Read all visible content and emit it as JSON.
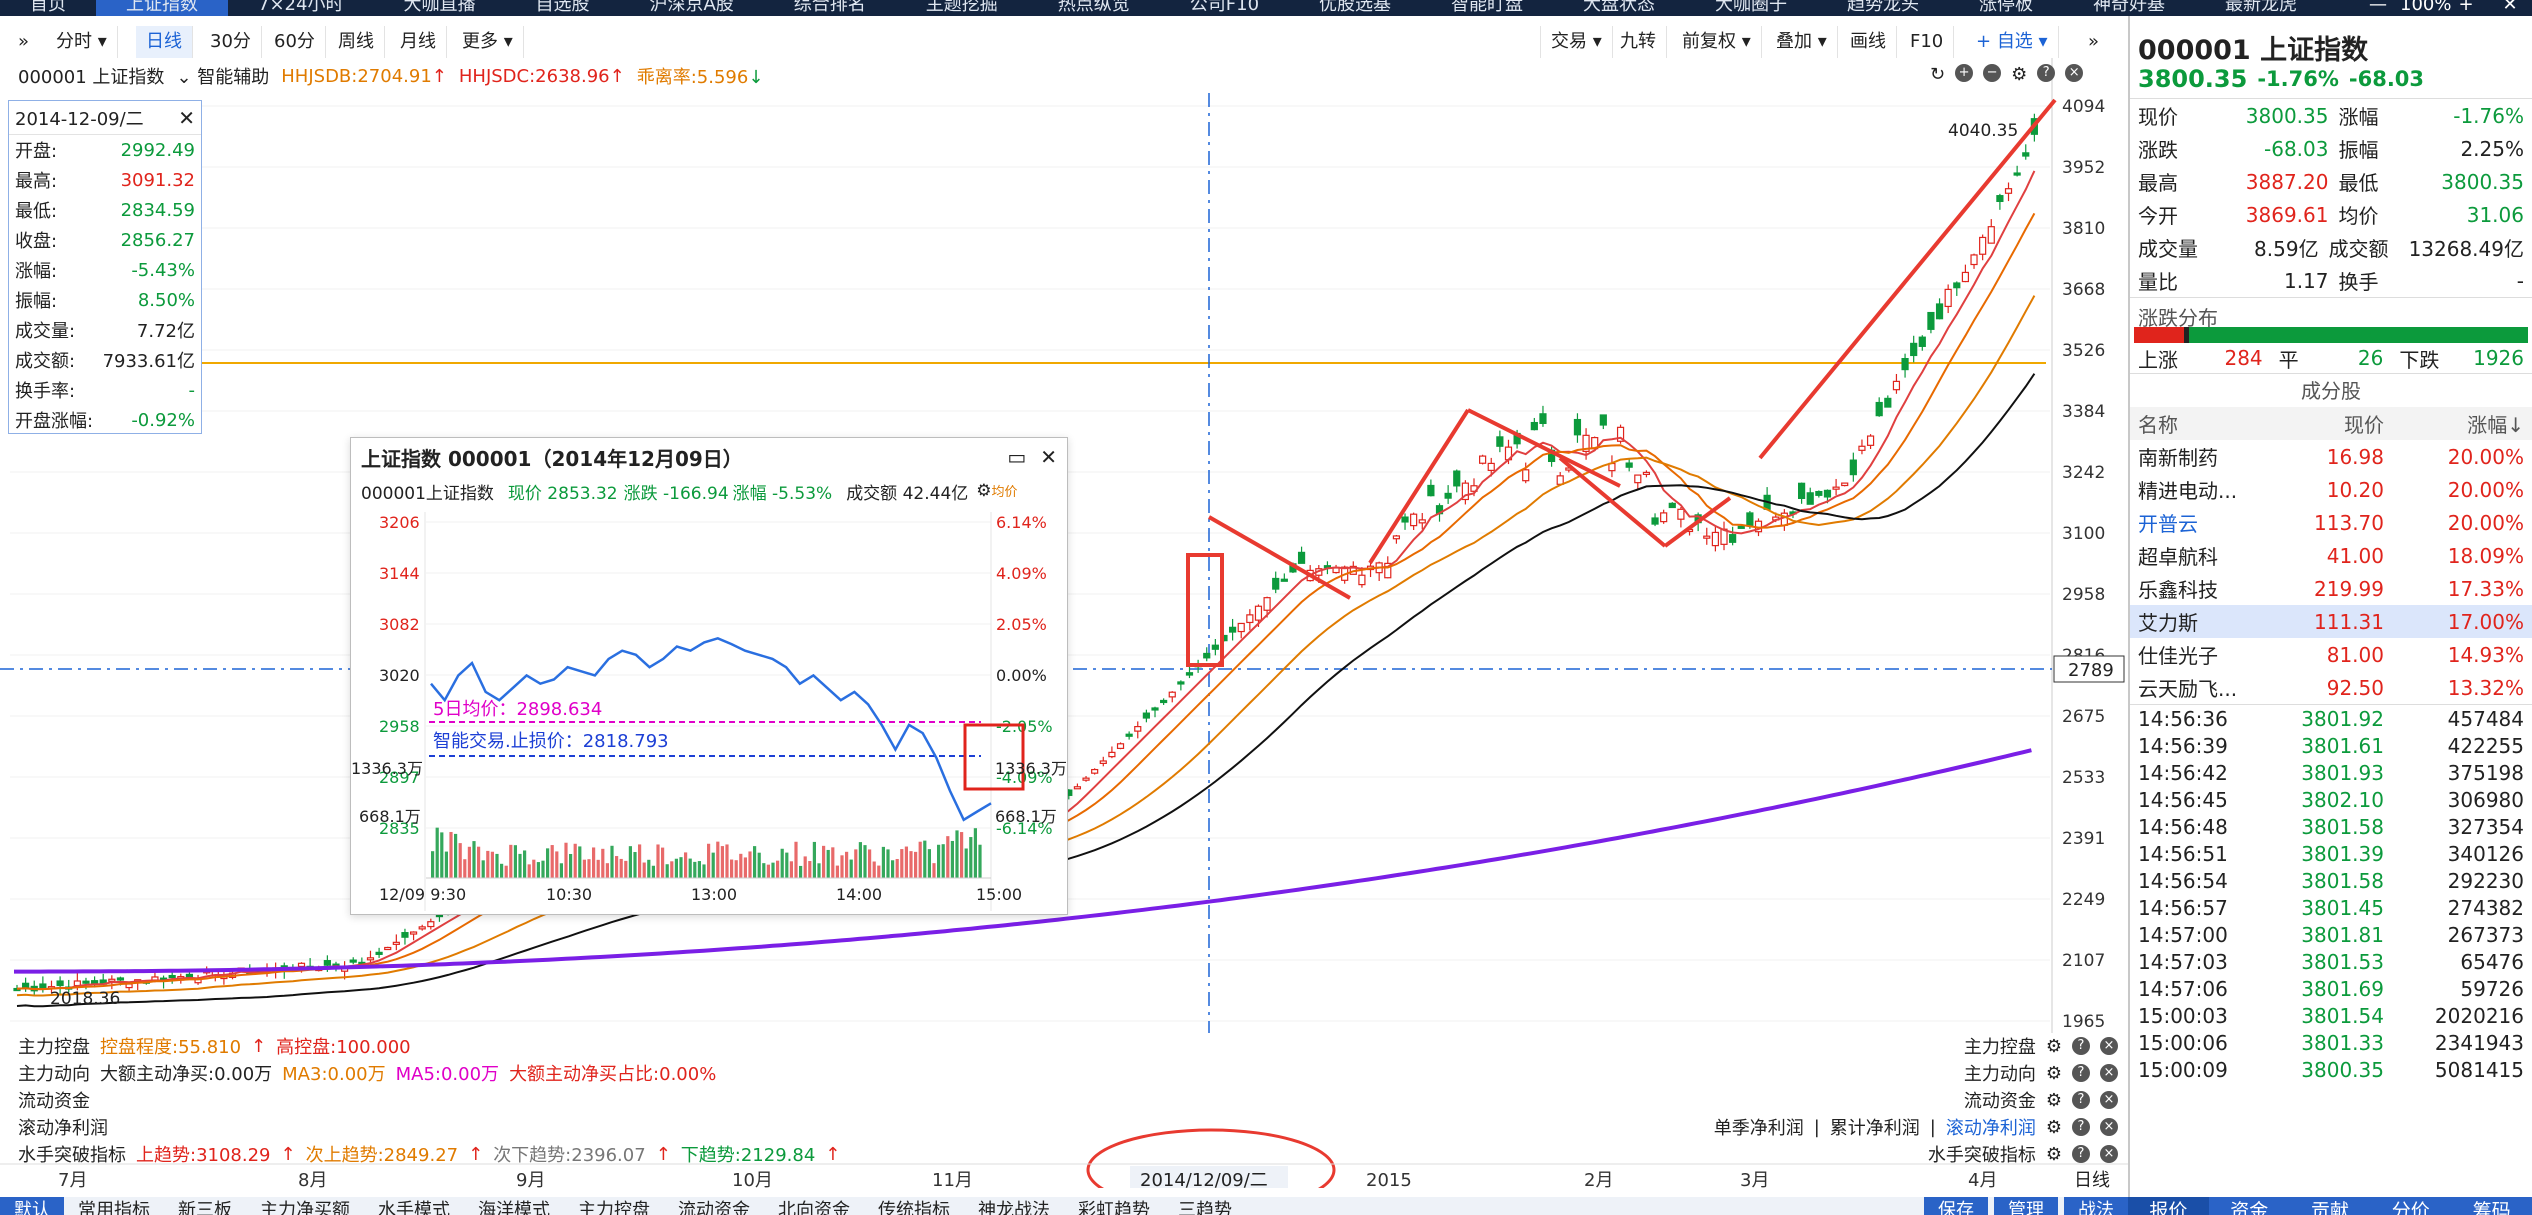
{
  "topnav": {
    "items": [
      "首页",
      "上证指数",
      "7×24小时",
      "大咖直播",
      "自选股",
      "沪深京A股",
      "综合排名",
      "主题挖掘",
      "热点纵览",
      "公司F10",
      "优股选基",
      "智能盯盘",
      "大盘状态",
      "大咖圈子",
      "趋势龙头",
      "涨停板",
      "神奇好基",
      "最新龙虎"
    ],
    "window_controls": [
      "—",
      "100%",
      "+",
      "✕"
    ]
  },
  "toolbar": {
    "menu_icon": "»",
    "items": [
      "分时",
      "日线",
      "30分",
      "60分",
      "周线",
      "月线",
      "更多"
    ],
    "right_items": [
      "交易",
      "九转",
      "前复权",
      "叠加",
      "画线",
      "F10",
      "自选"
    ],
    "collapse": "»"
  },
  "header": {
    "symbol": "000001 上证指数",
    "assist": "智能辅助",
    "hhjsdb": "HHJSDB:2704.91",
    "hhjsdc": "HHJSDC:2638.96",
    "bias": "乖离率:5.596"
  },
  "ohlc": {
    "date": "2014-12-09/二",
    "close_icon": "✕",
    "rows": [
      {
        "k": "开盘:",
        "v": "2992.49"
      },
      {
        "k": "最高:",
        "v": "3091.32"
      },
      {
        "k": "最低:",
        "v": "2834.59"
      },
      {
        "k": "收盘:",
        "v": "2856.27"
      },
      {
        "k": "涨幅:",
        "v": "-5.43%"
      },
      {
        "k": "振幅:",
        "v": "8.50%"
      },
      {
        "k": "成交量:",
        "v": "7.72亿"
      },
      {
        "k": "成交额:",
        "v": "7933.61亿"
      },
      {
        "k": "换手率:",
        "v": "-"
      },
      {
        "k": "开盘涨幅:",
        "v": "-0.92%"
      }
    ]
  },
  "price_axis": [
    "4094",
    "3952",
    "3810",
    "3668",
    "3526",
    "3384",
    "3242",
    "3100",
    "2958",
    "2816",
    "2675",
    "2533",
    "2391",
    "2249",
    "2107",
    "1965"
  ],
  "crosshair_price": "2789",
  "marks": {
    "high": "4040.35",
    "low": "2018.36"
  },
  "time_axis": [
    "7月",
    "8月",
    "9月",
    "10月",
    "11月",
    "2015",
    "2月",
    "3月",
    "4月"
  ],
  "cursor_date": "2014/12/09/二",
  "day_button": "日线",
  "popup": {
    "title": "上证指数 000001（2014年12月09日）",
    "symbol": "000001上证指数",
    "now": "现价 2853.32",
    "change": "涨跌 -166.94",
    "pct": "涨幅 -5.53%",
    "amount": "成交额 42.44亿",
    "vol_label": "均价",
    "left_axis": [
      "3206",
      "3144",
      "3082",
      "3020",
      "2958",
      "2897",
      "2835"
    ],
    "right_axis": [
      "6.14%",
      "4.09%",
      "2.05%",
      "0.00%",
      "-2.05%",
      "-4.09%",
      "-6.14%"
    ],
    "vol_axis": [
      "1336.3万",
      "668.1万"
    ],
    "times": [
      "12/09 9:30",
      "10:30",
      "13:00",
      "14:00",
      "15:00"
    ],
    "ma5": "5日均价：2898.634",
    "stoploss": "智能交易.止损价：2818.793"
  },
  "indicators": {
    "kp": {
      "name": "主力控盘",
      "a": "控盘程度:55.810",
      "b": "高控盘:100.000"
    },
    "dx": {
      "name": "主力动向",
      "a": "大额主动净买:0.00万",
      "b": "MA3:0.00万",
      "c": "MA5:0.00万",
      "d": "大额主动净买占比:0.00%"
    },
    "lt": {
      "name": "流动资金"
    },
    "gd": {
      "name": "滚动净利润",
      "tabs": [
        "单季净利润",
        "累计净利润",
        "滚动净利润"
      ]
    },
    "ss": {
      "name": "水手突破指标",
      "a": "上趋势:3108.29",
      "b": "次上趋势:2849.27",
      "c": "次下趋势:2396.07",
      "d": "下趋势:2129.84"
    }
  },
  "bottomtabs": {
    "items": [
      "默认",
      "常用指标",
      "新三板",
      "主力净买额",
      "水手模式",
      "海洋模式",
      "主力控盘",
      "流动资金",
      "北向资金",
      "传统指标",
      "神龙战法",
      "彩虹趋势",
      "三趋势"
    ],
    "right": [
      "保存",
      "管理",
      "战法"
    ]
  },
  "side": {
    "code": "000001",
    "name": "上证指数",
    "price": "3800.35",
    "pct": "-1.76%",
    "chg": "-68.03",
    "quote": [
      {
        "k1": "现价",
        "v1": "3800.35",
        "k2": "涨幅",
        "v2": "-1.76%"
      },
      {
        "k1": "涨跌",
        "v1": "-68.03",
        "k2": "振幅",
        "v2": "2.25%"
      },
      {
        "k1": "最高",
        "v1": "3887.20",
        "k2": "最低",
        "v2": "3800.35"
      },
      {
        "k1": "今开",
        "v1": "3869.61",
        "k2": "均价",
        "v2": "31.06"
      },
      {
        "k1": "成交量",
        "v1": "8.59亿",
        "k2": "成交额",
        "v2": "13268.49亿"
      },
      {
        "k1": "量比",
        "v1": "1.17",
        "k2": "换手",
        "v2": "-"
      }
    ],
    "dist_title": "涨跌分布",
    "up_label": "上涨",
    "up": "284",
    "flat_label": "平",
    "flat": "26",
    "down_label": "下跌",
    "down": "1926",
    "comp_title": "成分股",
    "comp_head": [
      "名称",
      "现价",
      "涨幅↓"
    ],
    "components": [
      {
        "n": "南新制药",
        "p": "16.98",
        "c": "20.00%"
      },
      {
        "n": "精进电动...",
        "p": "10.20",
        "c": "20.00%"
      },
      {
        "n": "开普云",
        "p": "113.70",
        "c": "20.00%"
      },
      {
        "n": "超卓航科",
        "p": "41.00",
        "c": "18.09%"
      },
      {
        "n": "乐鑫科技",
        "p": "219.99",
        "c": "17.33%"
      },
      {
        "n": "艾力斯",
        "p": "111.31",
        "c": "17.00%"
      },
      {
        "n": "仕佳光子",
        "p": "81.00",
        "c": "14.93%"
      },
      {
        "n": "云天励飞...",
        "p": "92.50",
        "c": "13.32%"
      }
    ],
    "ticks": [
      {
        "t": "14:56:36",
        "p": "3801.92",
        "v": "457484"
      },
      {
        "t": "14:56:39",
        "p": "3801.61",
        "v": "422255"
      },
      {
        "t": "14:56:42",
        "p": "3801.93",
        "v": "375198"
      },
      {
        "t": "14:56:45",
        "p": "3802.10",
        "v": "306980"
      },
      {
        "t": "14:56:48",
        "p": "3801.58",
        "v": "327354"
      },
      {
        "t": "14:56:51",
        "p": "3801.39",
        "v": "340126"
      },
      {
        "t": "14:56:54",
        "p": "3801.58",
        "v": "292230"
      },
      {
        "t": "14:56:57",
        "p": "3801.45",
        "v": "274382"
      },
      {
        "t": "14:57:00",
        "p": "3801.81",
        "v": "267373"
      },
      {
        "t": "14:57:03",
        "p": "3801.53",
        "v": "65476"
      },
      {
        "t": "14:57:06",
        "p": "3801.69",
        "v": "59726"
      },
      {
        "t": "15:00:03",
        "p": "3801.54",
        "v": "2020216"
      },
      {
        "t": "15:00:06",
        "p": "3801.33",
        "v": "2341943"
      },
      {
        "t": "15:00:09",
        "p": "3800.35",
        "v": "5081415"
      }
    ],
    "tabs": [
      "报价",
      "资金",
      "贡献",
      "分价",
      "筹码"
    ]
  }
}
